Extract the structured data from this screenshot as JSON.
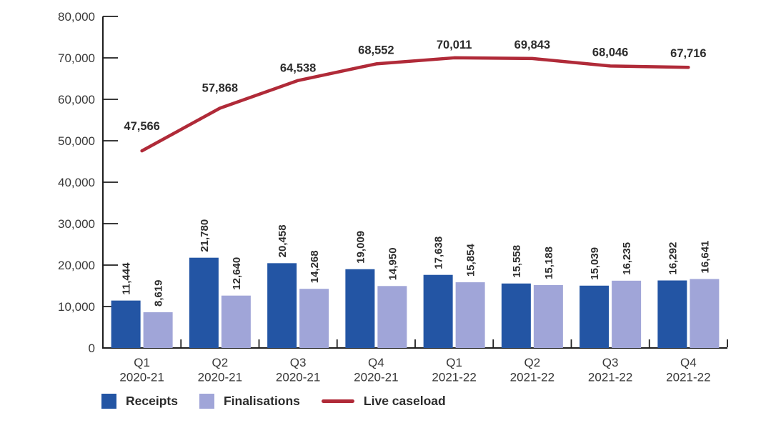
{
  "chart_data": {
    "type": "bar",
    "subtype": "grouped-bar-with-line-overlay",
    "categories": [
      {
        "quarter": "Q1",
        "year": "2020-21"
      },
      {
        "quarter": "Q2",
        "year": "2020-21"
      },
      {
        "quarter": "Q3",
        "year": "2020-21"
      },
      {
        "quarter": "Q4",
        "year": "2020-21"
      },
      {
        "quarter": "Q1",
        "year": "2021-22"
      },
      {
        "quarter": "Q2",
        "year": "2021-22"
      },
      {
        "quarter": "Q3",
        "year": "2021-22"
      },
      {
        "quarter": "Q4",
        "year": "2021-22"
      }
    ],
    "series": [
      {
        "name": "Receipts",
        "type": "bar",
        "color": "#2355A4",
        "values": [
          11444,
          21780,
          20458,
          19009,
          17638,
          15558,
          15039,
          16292
        ]
      },
      {
        "name": "Finalisations",
        "type": "bar",
        "color": "#A0A5D8",
        "values": [
          8619,
          12640,
          14268,
          14950,
          15854,
          15188,
          16235,
          16641
        ]
      },
      {
        "name": "Live caseload",
        "type": "line",
        "color": "#B02A38",
        "values": [
          47566,
          57868,
          64538,
          68552,
          70011,
          69843,
          68046,
          67716
        ]
      }
    ],
    "y_axis": {
      "min": 0,
      "max": 80000,
      "step": 10000,
      "tick_labels": [
        "0",
        "10,000",
        "20,000",
        "30,000",
        "40,000",
        "50,000",
        "60,000",
        "70,000",
        "80,000"
      ]
    },
    "grid": false,
    "data_labels": true,
    "legend_position": "bottom-left",
    "axis_color": "#1e1e1e"
  },
  "legend": {
    "items": [
      {
        "label": "Receipts",
        "swatch": "square",
        "color": "#2355A4"
      },
      {
        "label": "Finalisations",
        "swatch": "square",
        "color": "#A0A5D8"
      },
      {
        "label": "Live caseload",
        "swatch": "line",
        "color": "#B02A38"
      }
    ]
  }
}
